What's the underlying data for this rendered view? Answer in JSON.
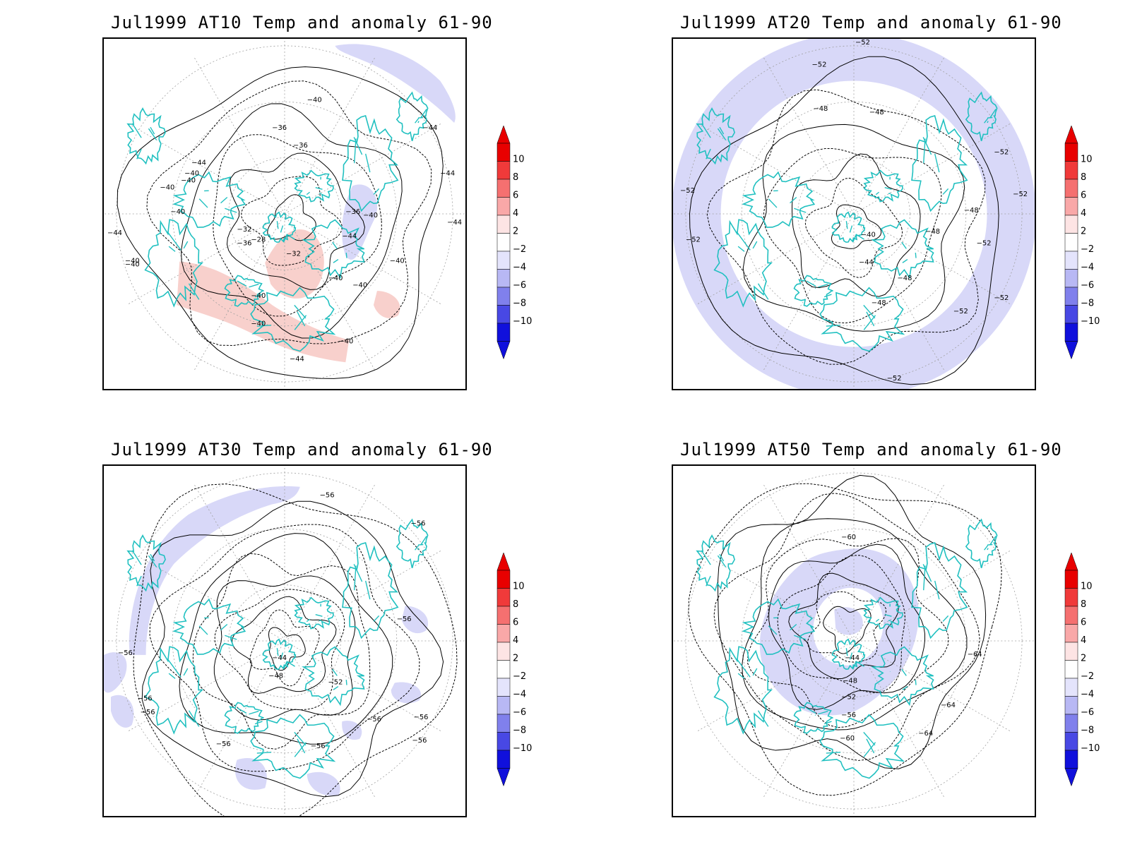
{
  "colors": {
    "coastline": "#20c0c0",
    "warm_anomaly": "#f8d0cc",
    "cold_anomaly": "#d8d8f8",
    "contour": "#000000",
    "grid": "#a0a0a0"
  },
  "colorbar": {
    "levels": [
      "10",
      "8",
      "6",
      "4",
      "2",
      "−2",
      "−4",
      "−6",
      "−8",
      "−10"
    ],
    "colors": [
      "#e80000",
      "#f03a3a",
      "#f57070",
      "#f9a8a8",
      "#fde4e4",
      "#ffffff",
      "#e4e4fc",
      "#b8b8f4",
      "#8080ec",
      "#4848e4",
      "#1010dc"
    ],
    "top_arrow_color": "#e80000",
    "bottom_arrow_color": "#1010dc"
  },
  "panels": [
    {
      "id": "at10",
      "title": "Jul1999 AT10 Temp and anomaly 61-90",
      "contour_labels": [
        "−40",
        "−40",
        "−36",
        "−36",
        "−40",
        "−44",
        "−40",
        "−40",
        "−32",
        "−28",
        "−32",
        "−36",
        "−36",
        "−44",
        "−40",
        "−40",
        "−40",
        "−40",
        "−40",
        "−40",
        "−44",
        "−44",
        "−44",
        "−44",
        "−40",
        "−40",
        "−44",
        "−40"
      ],
      "anomalies": [
        {
          "sign": "warm",
          "region": "North Pacific band"
        },
        {
          "sign": "warm",
          "region": "Arctic center"
        },
        {
          "sign": "warm",
          "region": "Europe"
        },
        {
          "sign": "cold",
          "region": "North Atlantic"
        },
        {
          "sign": "cold",
          "region": "Pacific edge"
        }
      ]
    },
    {
      "id": "at20",
      "title": "Jul1999 AT20 Temp and anomaly 61-90",
      "contour_labels": [
        "−52",
        "−48",
        "−48",
        "−52",
        "−52",
        "−52",
        "−52",
        "−48",
        "−48",
        "−52",
        "−40",
        "−44",
        "−48",
        "−48",
        "−52",
        "−52",
        "−52",
        "−52"
      ],
      "anomalies": [
        {
          "sign": "cold",
          "region": "outer ring"
        }
      ]
    },
    {
      "id": "at30",
      "title": "Jul1999 AT30 Temp and anomaly 61-90",
      "contour_labels": [
        "−56",
        "−56",
        "−56",
        "−56",
        "−44",
        "−48",
        "−52",
        "−56",
        "−56",
        "−56",
        "−56",
        "−56",
        "−56",
        "−56"
      ],
      "anomalies": [
        {
          "sign": "cold",
          "region": "Pacific arc"
        },
        {
          "sign": "cold",
          "region": "Atlantic patches"
        }
      ]
    },
    {
      "id": "at50",
      "title": "Jul1999 AT50 Temp and anomaly 61-90",
      "contour_labels": [
        "−60",
        "−44",
        "−48",
        "−52",
        "−56",
        "−60",
        "−64",
        "−64",
        "−64"
      ],
      "anomalies": [
        {
          "sign": "cold",
          "region": "polar vortex ring"
        }
      ]
    }
  ]
}
